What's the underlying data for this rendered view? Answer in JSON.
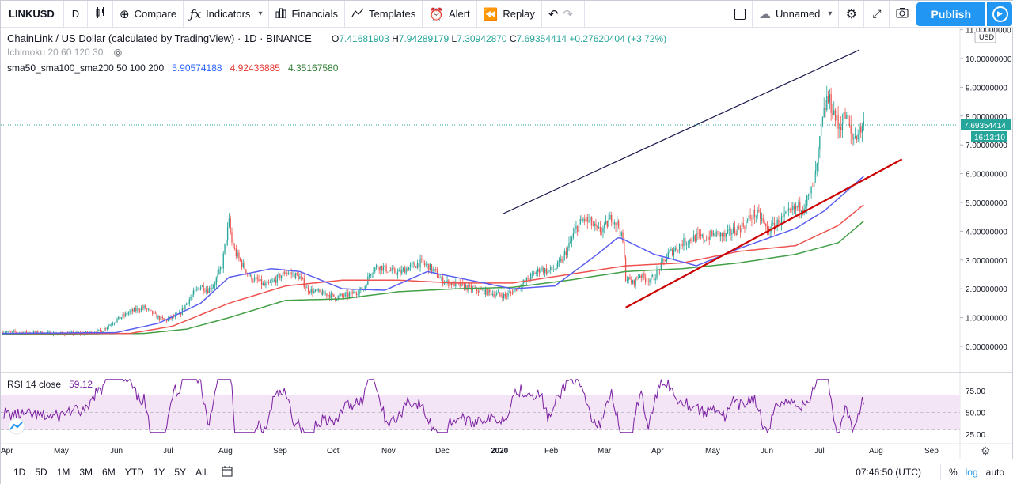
{
  "toolbar": {
    "symbol": "LINKUSD",
    "interval": "D",
    "compare": "Compare",
    "indicators": "Indicators",
    "financials": "Financials",
    "templates": "Templates",
    "alert": "Alert",
    "replay": "Replay",
    "layout_name": "Unnamed",
    "publish": "Publish"
  },
  "legend": {
    "title": "ChainLink / US Dollar (calculated by TradingView) · 1D · BINANCE",
    "ohlc": {
      "o_label": "O",
      "o": "7.41681903",
      "h_label": "H",
      "h": "7.94289179",
      "l_label": "L",
      "l": "7.30942870",
      "c_label": "C",
      "c": "7.69354414",
      "change": "+0.27620404 (+3.72%)"
    },
    "ichimoku": "Ichimoku 20 60 120 30",
    "sma_label": "sma50_sma100_sma200 50 100 200",
    "sma50": "5.90574188",
    "sma100": "4.92436885",
    "sma200": "4.35167580",
    "rsi_label": "RSI 14 close",
    "rsi_value": "59.12"
  },
  "price_scale": {
    "currency": "USD",
    "last_price": "7.69354414",
    "countdown": "16:13:10"
  },
  "bottom": {
    "ranges": [
      "1D",
      "5D",
      "1M",
      "3M",
      "6M",
      "YTD",
      "1Y",
      "5Y",
      "All"
    ],
    "time": "07:46:50 (UTC)",
    "percent": "%",
    "log": "log",
    "auto": "auto"
  },
  "colors": {
    "up": "#26a69a",
    "down": "#ef5350",
    "sma50": "#5a5ef0",
    "sma100": "#ef5350",
    "sma200": "#43a047",
    "rsi": "#7b1fa2",
    "rsi_band": "#f3e5f5",
    "trend_upper": "#1a1a4e",
    "trend_lower": "#cc0000",
    "accent": "#2196f3"
  },
  "chart_data": {
    "type": "candlestick",
    "title": "ChainLink / US Dollar (calculated by TradingView) · 1D · BINANCE",
    "ylim": [
      -0.5,
      11.0
    ],
    "y_ticks": [
      0,
      1,
      2,
      3,
      4,
      5,
      6,
      7,
      8,
      9,
      10,
      11
    ],
    "y_tick_labels": [
      "0.00000000",
      "1.00000000",
      "2.00000000",
      "3.00000000",
      "4.00000000",
      "5.00000000",
      "6.00000000",
      "7.00000000",
      "8.00000000",
      "9.00000000",
      "10.00000000",
      "11.00000000"
    ],
    "x_tick_labels": [
      "Apr",
      "May",
      "Jun",
      "Jul",
      "Aug",
      "Sep",
      "Oct",
      "Nov",
      "Dec",
      "2020",
      "Feb",
      "Mar",
      "Apr",
      "May",
      "Jun",
      "Jul",
      "Aug",
      "Sep"
    ],
    "price_path": [
      [
        0,
        0.5
      ],
      [
        20,
        0.48
      ],
      [
        40,
        0.45
      ],
      [
        60,
        0.46
      ],
      [
        70,
        0.55
      ],
      [
        80,
        0.9
      ],
      [
        90,
        1.2
      ],
      [
        100,
        1.35
      ],
      [
        110,
        1.0
      ],
      [
        115,
        0.9
      ],
      [
        125,
        1.1
      ],
      [
        130,
        1.5
      ],
      [
        135,
        1.85
      ],
      [
        140,
        2.1
      ],
      [
        145,
        1.95
      ],
      [
        150,
        2.2
      ],
      [
        155,
        2.8
      ],
      [
        158,
        3.8
      ],
      [
        160,
        4.3
      ],
      [
        162,
        3.6
      ],
      [
        165,
        3.2
      ],
      [
        170,
        2.8
      ],
      [
        175,
        2.4
      ],
      [
        180,
        2.3
      ],
      [
        185,
        2.1
      ],
      [
        190,
        2.2
      ],
      [
        195,
        2.4
      ],
      [
        200,
        2.6
      ],
      [
        205,
        2.5
      ],
      [
        210,
        2.4
      ],
      [
        215,
        2.0
      ],
      [
        220,
        1.9
      ],
      [
        225,
        1.85
      ],
      [
        230,
        1.8
      ],
      [
        235,
        1.7
      ],
      [
        240,
        1.75
      ],
      [
        245,
        1.8
      ],
      [
        250,
        1.9
      ],
      [
        255,
        2.0
      ],
      [
        260,
        2.6
      ],
      [
        265,
        2.8
      ],
      [
        270,
        2.7
      ],
      [
        275,
        2.6
      ],
      [
        280,
        2.55
      ],
      [
        285,
        2.7
      ],
      [
        290,
        2.8
      ],
      [
        295,
        2.9
      ],
      [
        300,
        2.8
      ],
      [
        305,
        2.6
      ],
      [
        310,
        2.3
      ],
      [
        315,
        2.2
      ],
      [
        320,
        2.15
      ],
      [
        325,
        2.1
      ],
      [
        330,
        2.0
      ],
      [
        335,
        1.95
      ],
      [
        340,
        1.9
      ],
      [
        345,
        1.85
      ],
      [
        350,
        1.8
      ],
      [
        355,
        1.75
      ],
      [
        360,
        1.9
      ],
      [
        365,
        2.1
      ],
      [
        370,
        2.3
      ],
      [
        375,
        2.5
      ],
      [
        380,
        2.7
      ],
      [
        385,
        2.6
      ],
      [
        390,
        2.7
      ],
      [
        395,
        3.0
      ],
      [
        400,
        3.5
      ],
      [
        405,
        4.1
      ],
      [
        410,
        4.4
      ],
      [
        415,
        4.3
      ],
      [
        420,
        4.0
      ],
      [
        425,
        4.1
      ],
      [
        430,
        4.5
      ],
      [
        435,
        4.2
      ],
      [
        438,
        3.6
      ],
      [
        440,
        2.4
      ],
      [
        445,
        2.2
      ],
      [
        450,
        2.5
      ],
      [
        455,
        2.3
      ],
      [
        460,
        2.4
      ],
      [
        465,
        2.8
      ],
      [
        470,
        3.2
      ],
      [
        475,
        3.4
      ],
      [
        480,
        3.6
      ],
      [
        485,
        3.7
      ],
      [
        490,
        3.8
      ],
      [
        495,
        3.75
      ],
      [
        500,
        3.85
      ],
      [
        505,
        3.9
      ],
      [
        510,
        3.8
      ],
      [
        515,
        4.0
      ],
      [
        520,
        4.1
      ],
      [
        525,
        4.3
      ],
      [
        530,
        4.6
      ],
      [
        535,
        4.5
      ],
      [
        540,
        4.0
      ],
      [
        545,
        4.2
      ],
      [
        550,
        4.4
      ],
      [
        555,
        4.6
      ],
      [
        560,
        4.8
      ],
      [
        565,
        4.9
      ],
      [
        570,
        5.2
      ],
      [
        575,
        6.2
      ],
      [
        578,
        7.5
      ],
      [
        582,
        8.6
      ],
      [
        586,
        8.3
      ],
      [
        590,
        7.6
      ],
      [
        595,
        8.0
      ],
      [
        600,
        7.2
      ],
      [
        605,
        7.5
      ],
      [
        608,
        7.69
      ]
    ],
    "sma50_path": [
      [
        0,
        0.45
      ],
      [
        80,
        0.48
      ],
      [
        110,
        0.8
      ],
      [
        140,
        1.5
      ],
      [
        160,
        2.4
      ],
      [
        190,
        2.7
      ],
      [
        210,
        2.6
      ],
      [
        240,
        2.0
      ],
      [
        270,
        1.95
      ],
      [
        300,
        2.6
      ],
      [
        330,
        2.3
      ],
      [
        360,
        2.0
      ],
      [
        390,
        2.1
      ],
      [
        420,
        3.2
      ],
      [
        435,
        3.8
      ],
      [
        460,
        3.2
      ],
      [
        490,
        2.8
      ],
      [
        520,
        3.4
      ],
      [
        560,
        4.1
      ],
      [
        580,
        4.7
      ],
      [
        608,
        5.91
      ]
    ],
    "sma100_path": [
      [
        0,
        0.45
      ],
      [
        90,
        0.45
      ],
      [
        120,
        0.7
      ],
      [
        160,
        1.5
      ],
      [
        200,
        2.1
      ],
      [
        240,
        2.3
      ],
      [
        280,
        2.3
      ],
      [
        320,
        2.2
      ],
      [
        360,
        2.2
      ],
      [
        400,
        2.5
      ],
      [
        440,
        2.8
      ],
      [
        480,
        2.9
      ],
      [
        520,
        3.3
      ],
      [
        560,
        3.5
      ],
      [
        590,
        4.2
      ],
      [
        608,
        4.92
      ]
    ],
    "sma200_path": [
      [
        0,
        0.42
      ],
      [
        100,
        0.45
      ],
      [
        130,
        0.6
      ],
      [
        160,
        1.0
      ],
      [
        200,
        1.6
      ],
      [
        240,
        1.65
      ],
      [
        280,
        1.9
      ],
      [
        320,
        2.0
      ],
      [
        360,
        2.05
      ],
      [
        400,
        2.3
      ],
      [
        440,
        2.6
      ],
      [
        480,
        2.7
      ],
      [
        520,
        2.9
      ],
      [
        560,
        3.2
      ],
      [
        590,
        3.6
      ],
      [
        608,
        4.35
      ]
    ],
    "rsi": {
      "ylim": [
        20,
        95
      ],
      "y_ticks": [
        25,
        50,
        75
      ],
      "y_tick_labels": [
        "25.00",
        "50.00",
        "75.00"
      ],
      "band": [
        30,
        70
      ],
      "last": 59.12
    },
    "trendlines": [
      {
        "name": "upper",
        "from": [
          353,
          4.6
        ],
        "to": [
          605,
          10.3
        ]
      },
      {
        "name": "lower",
        "from": [
          440,
          1.35
        ],
        "to": [
          635,
          6.5
        ]
      }
    ]
  }
}
